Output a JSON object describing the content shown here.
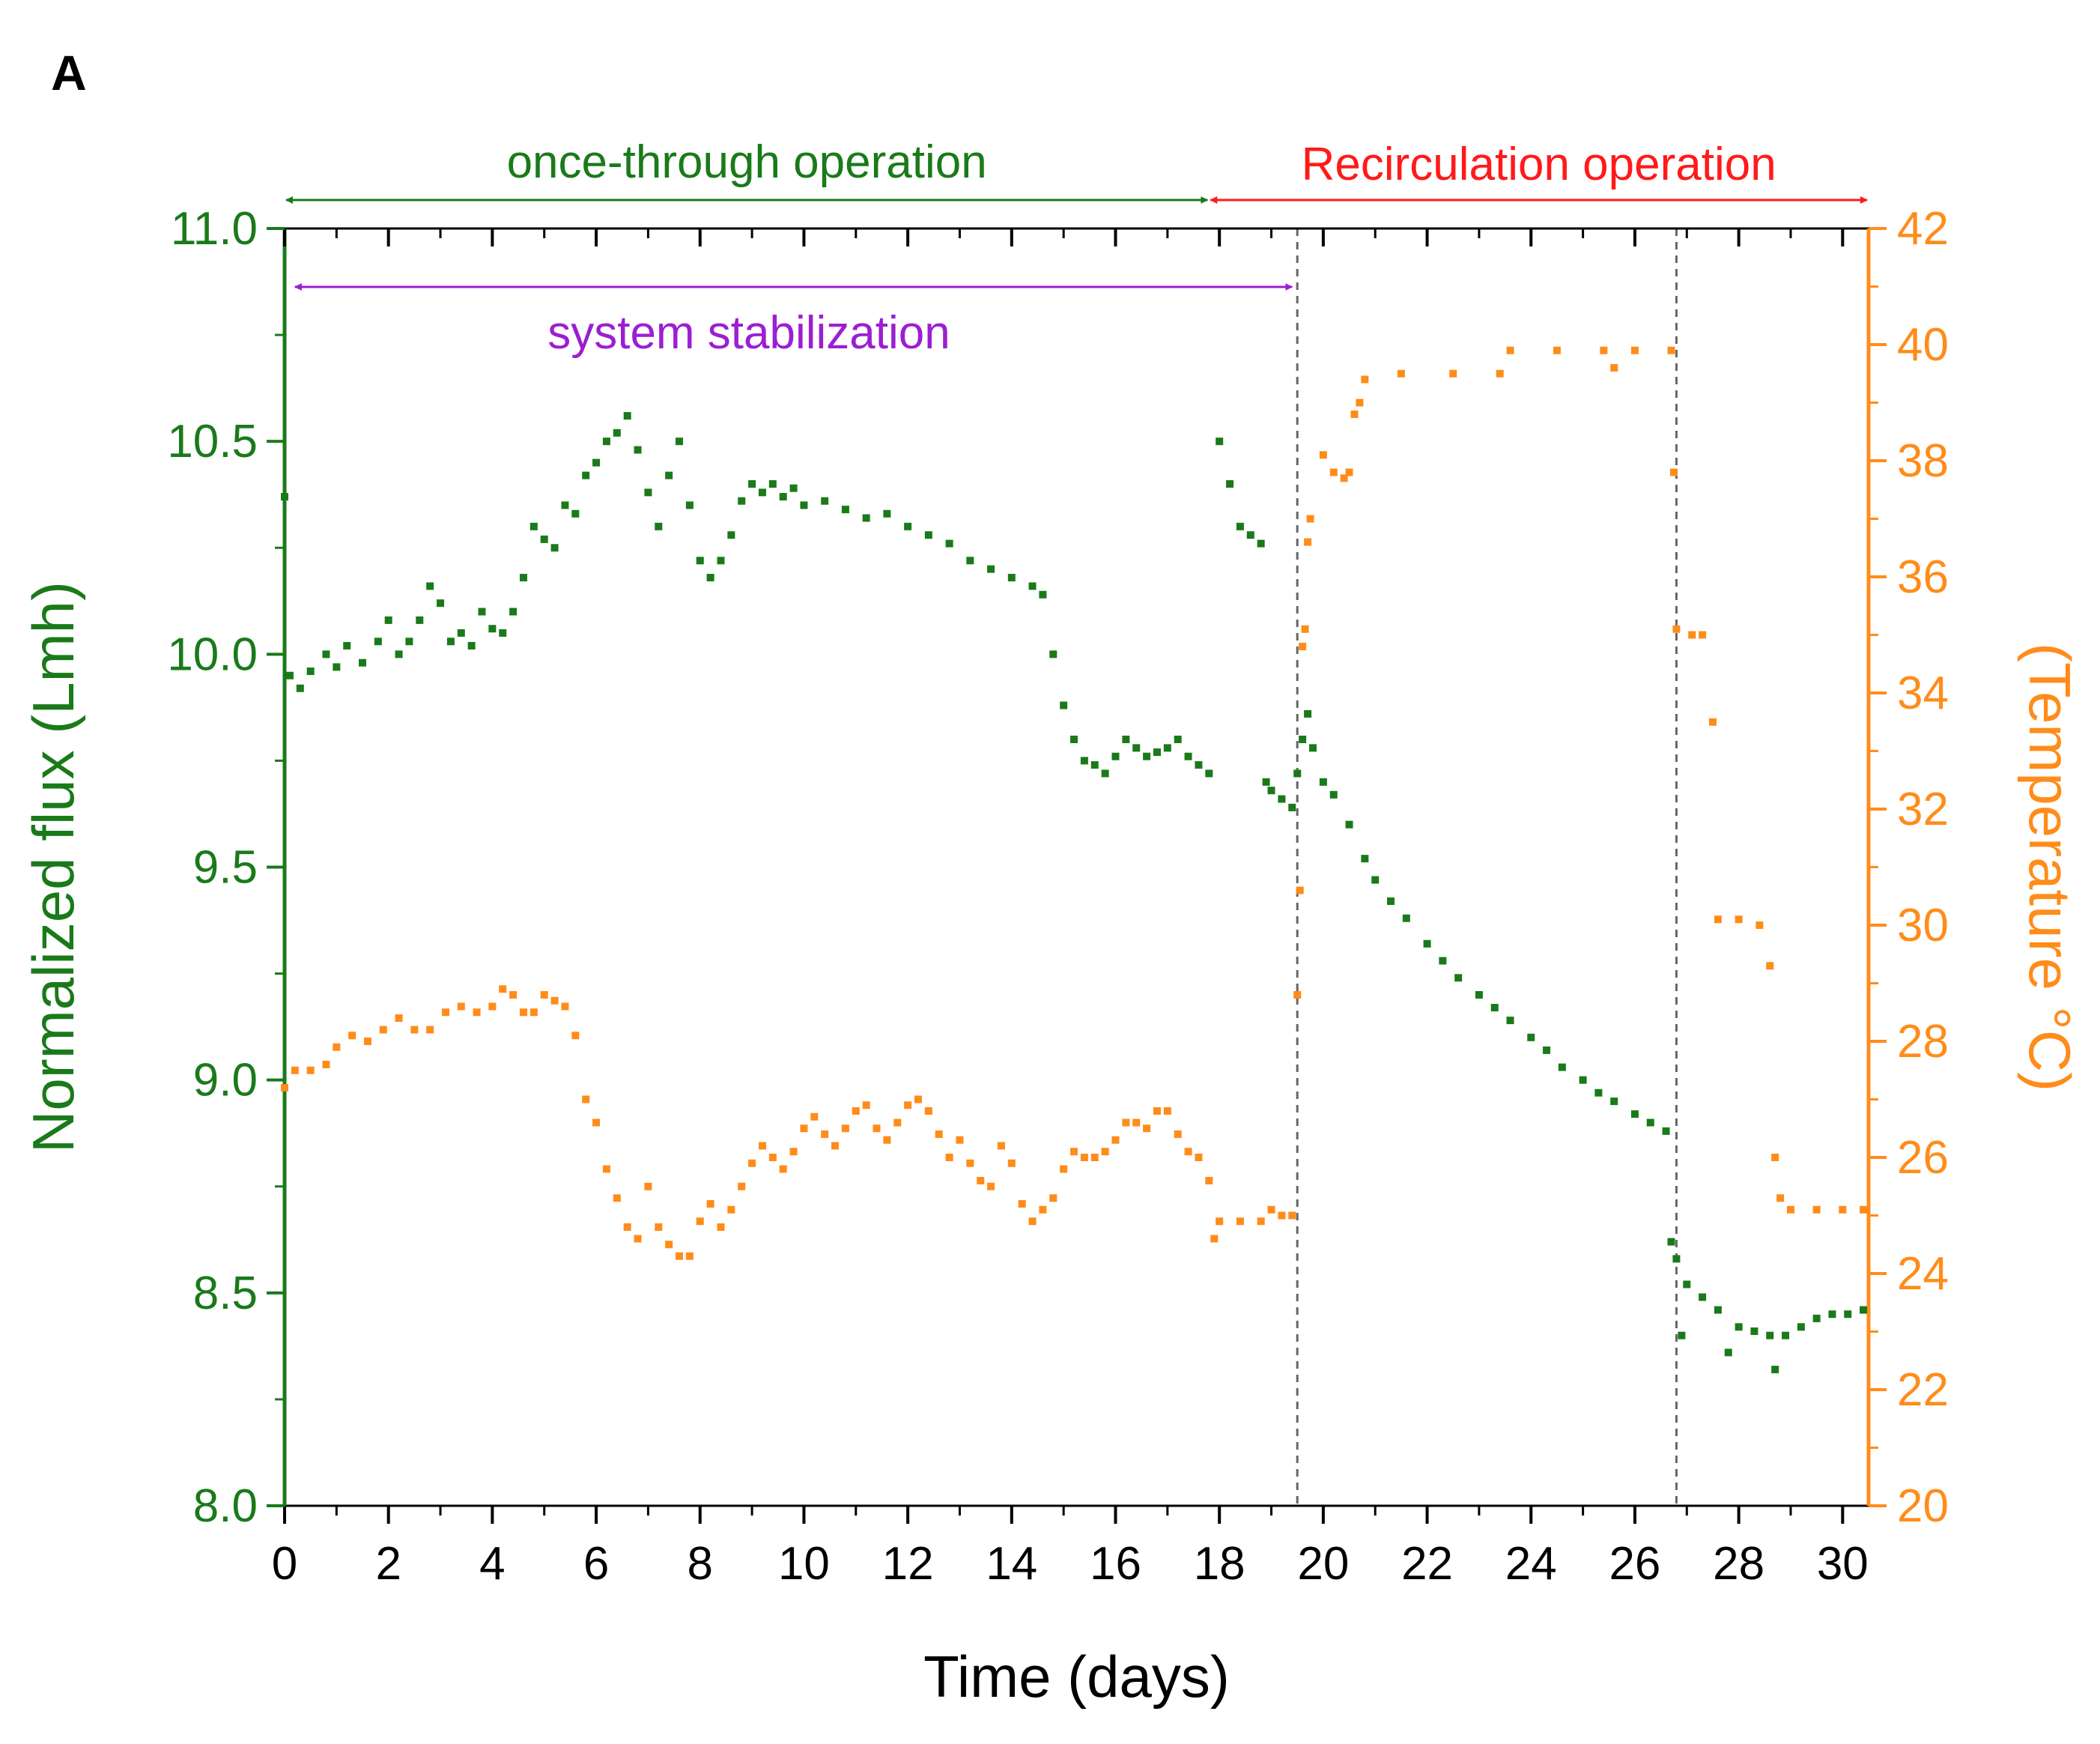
{
  "panel_label": "A",
  "colors": {
    "flux": "#1a7a1a",
    "temp": "#ff8c1a",
    "once": "#1a7a1a",
    "recirc": "#ff1a1a",
    "stabilization": "#9b1fd1",
    "axis": "#000000",
    "divider": "#666666"
  },
  "annotations": {
    "once_through": {
      "label": "once-through operation",
      "x_from": 0,
      "x_to": 17.8
    },
    "recirculation": {
      "label": "Recirculation operation",
      "x_from": 17.8,
      "x_to": 30.5
    },
    "stabilization": {
      "label": "system stabilization",
      "x_from": 0.2,
      "x_to": 19.4
    },
    "dividers": [
      19.5,
      26.8
    ]
  },
  "chart_data": {
    "type": "scatter",
    "xlabel": "Time (days)",
    "ylabel": "Normalized flux (Lmh)",
    "y2label": "(Temperature °C)",
    "xlim": [
      0,
      30.5
    ],
    "ylim": [
      8.0,
      11.0
    ],
    "y2lim": [
      20,
      42
    ],
    "xticks": [
      "0",
      "2",
      "4",
      "6",
      "8",
      "10",
      "12",
      "14",
      "16",
      "18",
      "20",
      "22",
      "24",
      "26",
      "28",
      "30"
    ],
    "yticks": [
      "8.0",
      "8.5",
      "9.0",
      "9.5",
      "10.0",
      "10.5",
      "11.0"
    ],
    "y2ticks": [
      "20",
      "22",
      "24",
      "26",
      "28",
      "30",
      "32",
      "34",
      "36",
      "38",
      "40",
      "42"
    ],
    "series": [
      {
        "name": "Normalized flux",
        "axis": "left",
        "points": [
          [
            0,
            10.37
          ],
          [
            0.1,
            9.95
          ],
          [
            0.3,
            9.92
          ],
          [
            0.5,
            9.96
          ],
          [
            0.8,
            10.0
          ],
          [
            1.0,
            9.97
          ],
          [
            1.2,
            10.02
          ],
          [
            1.5,
            9.98
          ],
          [
            1.8,
            10.03
          ],
          [
            2.0,
            10.08
          ],
          [
            2.2,
            10.0
          ],
          [
            2.4,
            10.03
          ],
          [
            2.6,
            10.08
          ],
          [
            2.8,
            10.16
          ],
          [
            3.0,
            10.12
          ],
          [
            3.2,
            10.03
          ],
          [
            3.4,
            10.05
          ],
          [
            3.6,
            10.02
          ],
          [
            3.8,
            10.1
          ],
          [
            4.0,
            10.06
          ],
          [
            4.2,
            10.05
          ],
          [
            4.4,
            10.1
          ],
          [
            4.6,
            10.18
          ],
          [
            4.8,
            10.3
          ],
          [
            5.0,
            10.27
          ],
          [
            5.2,
            10.25
          ],
          [
            5.4,
            10.35
          ],
          [
            5.6,
            10.33
          ],
          [
            5.8,
            10.42
          ],
          [
            6.0,
            10.45
          ],
          [
            6.2,
            10.5
          ],
          [
            6.4,
            10.52
          ],
          [
            6.6,
            10.56
          ],
          [
            6.8,
            10.48
          ],
          [
            7.0,
            10.38
          ],
          [
            7.2,
            10.3
          ],
          [
            7.4,
            10.42
          ],
          [
            7.6,
            10.5
          ],
          [
            7.8,
            10.35
          ],
          [
            8.0,
            10.22
          ],
          [
            8.2,
            10.18
          ],
          [
            8.4,
            10.22
          ],
          [
            8.6,
            10.28
          ],
          [
            8.8,
            10.36
          ],
          [
            9.0,
            10.4
          ],
          [
            9.2,
            10.38
          ],
          [
            9.4,
            10.4
          ],
          [
            9.6,
            10.37
          ],
          [
            9.8,
            10.39
          ],
          [
            10.0,
            10.35
          ],
          [
            10.4,
            10.36
          ],
          [
            10.8,
            10.34
          ],
          [
            11.2,
            10.32
          ],
          [
            11.6,
            10.33
          ],
          [
            12.0,
            10.3
          ],
          [
            12.4,
            10.28
          ],
          [
            12.8,
            10.26
          ],
          [
            13.2,
            10.22
          ],
          [
            13.6,
            10.2
          ],
          [
            14.0,
            10.18
          ],
          [
            14.4,
            10.16
          ],
          [
            14.6,
            10.14
          ],
          [
            14.8,
            10.0
          ],
          [
            15.0,
            9.88
          ],
          [
            15.2,
            9.8
          ],
          [
            15.4,
            9.75
          ],
          [
            15.6,
            9.74
          ],
          [
            15.8,
            9.72
          ],
          [
            16.0,
            9.76
          ],
          [
            16.2,
            9.8
          ],
          [
            16.4,
            9.78
          ],
          [
            16.6,
            9.76
          ],
          [
            16.8,
            9.77
          ],
          [
            17.0,
            9.78
          ],
          [
            17.2,
            9.8
          ],
          [
            17.4,
            9.76
          ],
          [
            17.6,
            9.74
          ],
          [
            17.8,
            9.72
          ],
          [
            18.0,
            10.5
          ],
          [
            18.2,
            10.4
          ],
          [
            18.4,
            10.3
          ],
          [
            18.6,
            10.28
          ],
          [
            18.8,
            10.26
          ],
          [
            18.9,
            9.7
          ],
          [
            19.0,
            9.68
          ],
          [
            19.2,
            9.66
          ],
          [
            19.4,
            9.64
          ],
          [
            19.5,
            9.72
          ],
          [
            19.6,
            9.8
          ],
          [
            19.7,
            9.86
          ],
          [
            19.8,
            9.78
          ],
          [
            20.0,
            9.7
          ],
          [
            20.2,
            9.67
          ],
          [
            20.5,
            9.6
          ],
          [
            20.8,
            9.52
          ],
          [
            21.0,
            9.47
          ],
          [
            21.3,
            9.42
          ],
          [
            21.6,
            9.38
          ],
          [
            22.0,
            9.32
          ],
          [
            22.3,
            9.28
          ],
          [
            22.6,
            9.24
          ],
          [
            23.0,
            9.2
          ],
          [
            23.3,
            9.17
          ],
          [
            23.6,
            9.14
          ],
          [
            24.0,
            9.1
          ],
          [
            24.3,
            9.07
          ],
          [
            24.6,
            9.03
          ],
          [
            25.0,
            9.0
          ],
          [
            25.3,
            8.97
          ],
          [
            25.6,
            8.95
          ],
          [
            26.0,
            8.92
          ],
          [
            26.3,
            8.9
          ],
          [
            26.6,
            8.88
          ],
          [
            26.7,
            8.62
          ],
          [
            26.8,
            8.58
          ],
          [
            26.9,
            8.4
          ],
          [
            27.0,
            8.52
          ],
          [
            27.3,
            8.49
          ],
          [
            27.6,
            8.46
          ],
          [
            27.8,
            8.36
          ],
          [
            28.0,
            8.42
          ],
          [
            28.3,
            8.41
          ],
          [
            28.6,
            8.4
          ],
          [
            28.7,
            8.32
          ],
          [
            28.9,
            8.4
          ],
          [
            29.2,
            8.42
          ],
          [
            29.5,
            8.44
          ],
          [
            29.8,
            8.45
          ],
          [
            30.1,
            8.45
          ],
          [
            30.4,
            8.46
          ]
        ]
      },
      {
        "name": "Temperature",
        "axis": "right",
        "points": [
          [
            0,
            27.2
          ],
          [
            0.2,
            27.5
          ],
          [
            0.5,
            27.5
          ],
          [
            0.8,
            27.6
          ],
          [
            1.0,
            27.9
          ],
          [
            1.3,
            28.1
          ],
          [
            1.6,
            28.0
          ],
          [
            1.9,
            28.2
          ],
          [
            2.2,
            28.4
          ],
          [
            2.5,
            28.2
          ],
          [
            2.8,
            28.2
          ],
          [
            3.1,
            28.5
          ],
          [
            3.4,
            28.6
          ],
          [
            3.7,
            28.5
          ],
          [
            4.0,
            28.6
          ],
          [
            4.2,
            28.9
          ],
          [
            4.4,
            28.8
          ],
          [
            4.6,
            28.5
          ],
          [
            4.8,
            28.5
          ],
          [
            5.0,
            28.8
          ],
          [
            5.2,
            28.7
          ],
          [
            5.4,
            28.6
          ],
          [
            5.6,
            28.1
          ],
          [
            5.8,
            27.0
          ],
          [
            6.0,
            26.6
          ],
          [
            6.2,
            25.8
          ],
          [
            6.4,
            25.3
          ],
          [
            6.6,
            24.8
          ],
          [
            6.8,
            24.6
          ],
          [
            7.0,
            25.5
          ],
          [
            7.2,
            24.8
          ],
          [
            7.4,
            24.5
          ],
          [
            7.6,
            24.3
          ],
          [
            7.8,
            24.3
          ],
          [
            8.0,
            24.9
          ],
          [
            8.2,
            25.2
          ],
          [
            8.4,
            24.8
          ],
          [
            8.6,
            25.1
          ],
          [
            8.8,
            25.5
          ],
          [
            9.0,
            25.9
          ],
          [
            9.2,
            26.2
          ],
          [
            9.4,
            26.0
          ],
          [
            9.6,
            25.8
          ],
          [
            9.8,
            26.1
          ],
          [
            10.0,
            26.5
          ],
          [
            10.2,
            26.7
          ],
          [
            10.4,
            26.4
          ],
          [
            10.6,
            26.2
          ],
          [
            10.8,
            26.5
          ],
          [
            11.0,
            26.8
          ],
          [
            11.2,
            26.9
          ],
          [
            11.4,
            26.5
          ],
          [
            11.6,
            26.3
          ],
          [
            11.8,
            26.6
          ],
          [
            12.0,
            26.9
          ],
          [
            12.2,
            27.0
          ],
          [
            12.4,
            26.8
          ],
          [
            12.6,
            26.4
          ],
          [
            12.8,
            26.0
          ],
          [
            13.0,
            26.3
          ],
          [
            13.2,
            25.9
          ],
          [
            13.4,
            25.6
          ],
          [
            13.6,
            25.5
          ],
          [
            13.8,
            26.2
          ],
          [
            14.0,
            25.9
          ],
          [
            14.2,
            25.2
          ],
          [
            14.4,
            24.9
          ],
          [
            14.6,
            25.1
          ],
          [
            14.8,
            25.3
          ],
          [
            15.0,
            25.8
          ],
          [
            15.2,
            26.1
          ],
          [
            15.4,
            26.0
          ],
          [
            15.6,
            26.0
          ],
          [
            15.8,
            26.1
          ],
          [
            16.0,
            26.3
          ],
          [
            16.2,
            26.6
          ],
          [
            16.4,
            26.6
          ],
          [
            16.6,
            26.5
          ],
          [
            16.8,
            26.8
          ],
          [
            17.0,
            26.8
          ],
          [
            17.2,
            26.4
          ],
          [
            17.4,
            26.1
          ],
          [
            17.6,
            26.0
          ],
          [
            17.8,
            25.6
          ],
          [
            17.9,
            24.6
          ],
          [
            18.0,
            24.9
          ],
          [
            18.4,
            24.9
          ],
          [
            18.8,
            24.9
          ],
          [
            19.0,
            25.1
          ],
          [
            19.2,
            25.0
          ],
          [
            19.4,
            25.0
          ],
          [
            19.5,
            28.8
          ],
          [
            19.55,
            30.6
          ],
          [
            19.6,
            34.8
          ],
          [
            19.65,
            35.1
          ],
          [
            19.7,
            36.6
          ],
          [
            19.75,
            37.0
          ],
          [
            20.0,
            38.1
          ],
          [
            20.2,
            37.8
          ],
          [
            20.4,
            37.7
          ],
          [
            20.5,
            37.8
          ],
          [
            20.6,
            38.8
          ],
          [
            20.7,
            39.0
          ],
          [
            20.8,
            39.4
          ],
          [
            21.5,
            39.5
          ],
          [
            22.5,
            39.5
          ],
          [
            23.4,
            39.5
          ],
          [
            23.6,
            39.9
          ],
          [
            24.5,
            39.9
          ],
          [
            25.4,
            39.9
          ],
          [
            25.6,
            39.6
          ],
          [
            26.0,
            39.9
          ],
          [
            26.7,
            39.9
          ],
          [
            26.75,
            37.8
          ],
          [
            26.8,
            35.1
          ],
          [
            27.1,
            35.0
          ],
          [
            27.3,
            35.0
          ],
          [
            27.5,
            33.5
          ],
          [
            27.6,
            30.1
          ],
          [
            28.0,
            30.1
          ],
          [
            28.4,
            30.0
          ],
          [
            28.6,
            29.3
          ],
          [
            28.7,
            26.0
          ],
          [
            28.8,
            25.3
          ],
          [
            29.0,
            25.1
          ],
          [
            29.5,
            25.1
          ],
          [
            30.0,
            25.1
          ],
          [
            30.4,
            25.1
          ]
        ]
      }
    ]
  }
}
